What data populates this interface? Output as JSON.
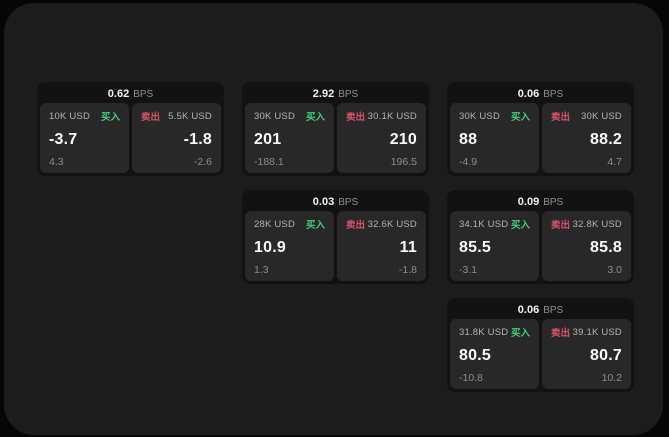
{
  "labels": {
    "bps": "BPS",
    "buy": "买入",
    "sell": "卖出"
  },
  "colors": {
    "background": "#060606",
    "surface": "#1c1c1c",
    "card": "#121212",
    "panel": "#282828",
    "buy_accent": "#3fce7c",
    "sell_accent": "#d9536a",
    "value_text": "#fafafa",
    "muted_text": "#8c8c8c"
  },
  "cards": [
    {
      "bps": "0.62",
      "buy": {
        "amount": "10K USD",
        "value": "-3.7",
        "sub": "4.3"
      },
      "sell": {
        "amount": "5.5K USD",
        "value": "-1.8",
        "sub": "-2.6"
      }
    },
    {
      "bps": "2.92",
      "buy": {
        "amount": "30K USD",
        "value": "201",
        "sub": "-188.1"
      },
      "sell": {
        "amount": "30.1K USD",
        "value": "210",
        "sub": "196.5"
      }
    },
    {
      "bps": "0.06",
      "buy": {
        "amount": "30K USD",
        "value": "88",
        "sub": "-4.9"
      },
      "sell": {
        "amount": "30K USD",
        "value": "88.2",
        "sub": "4.7"
      }
    },
    {
      "bps": "0.03",
      "buy": {
        "amount": "28K USD",
        "value": "10.9",
        "sub": "1.3"
      },
      "sell": {
        "amount": "32.6K USD",
        "value": "11",
        "sub": "-1.8"
      }
    },
    {
      "bps": "0.09",
      "buy": {
        "amount": "34.1K USD",
        "value": "85.5",
        "sub": "-3.1"
      },
      "sell": {
        "amount": "32.8K USD",
        "value": "85.8",
        "sub": "3.0"
      }
    },
    {
      "bps": "0.06",
      "buy": {
        "amount": "31.8K USD",
        "value": "80.5",
        "sub": "-10.8"
      },
      "sell": {
        "amount": "39.1K USD",
        "value": "80.7",
        "sub": "10.2"
      }
    }
  ]
}
